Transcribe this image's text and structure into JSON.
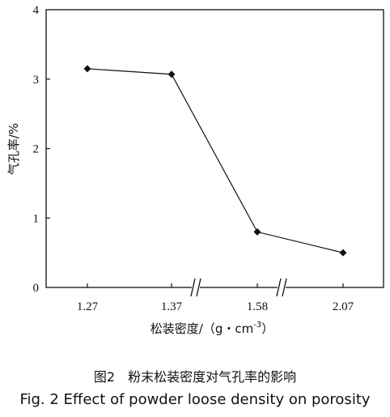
{
  "chart_data": {
    "type": "line",
    "categories": [
      "1.27",
      "1.37",
      "1.58",
      "2.07"
    ],
    "series": [
      {
        "values": [
          3.15,
          3.07,
          0.8,
          0.5
        ]
      }
    ],
    "xlabel_main": "松装密度/（g・cm",
    "xlabel_sup": "-3",
    "xlabel_close": "）",
    "ylabel": "气孔率/%",
    "ylim": [
      0,
      4
    ],
    "yticks": [
      "0",
      "1",
      "2",
      "3",
      "4"
    ],
    "axis_breaks": "between 1.37–1.58 and 1.58–2.07",
    "marker": "diamond",
    "line_color": "#111111",
    "grid": false
  },
  "caption": {
    "cn": "图2　粉末松装密度对气孔率的影响",
    "en": "Fig. 2 Effect of powder loose density on porosity"
  }
}
